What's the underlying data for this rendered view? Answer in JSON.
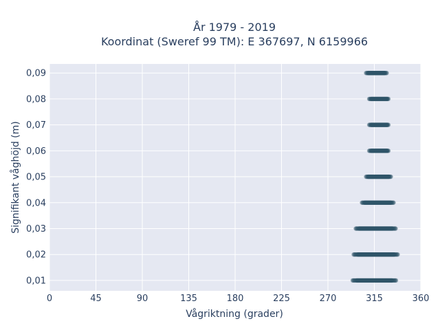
{
  "chart_data": {
    "type": "scatter",
    "title_line1": "År 1979 - 2019",
    "title_line2": "Koordinat (Sweref 99 TM): E 367697, N 6159966",
    "xlabel": "Vågriktning (grader)",
    "ylabel": "Signifikant våghöjd (m)",
    "xlim": [
      0,
      360
    ],
    "ylim": [
      0.006,
      0.0935
    ],
    "x_ticks": [
      0,
      45,
      90,
      135,
      180,
      225,
      270,
      315,
      360
    ],
    "x_tick_labels": [
      "0",
      "45",
      "90",
      "135",
      "180",
      "225",
      "270",
      "315",
      "360"
    ],
    "y_ticks": [
      0.01,
      0.02,
      0.03,
      0.04,
      0.05,
      0.06,
      0.07,
      0.08,
      0.09
    ],
    "y_tick_labels": [
      "0,01",
      "0,02",
      "0,03",
      "0,04",
      "0,05",
      "0,06",
      "0,07",
      "0,08",
      "0,09"
    ],
    "grid": true,
    "background_color": "#e5e8f2",
    "grid_color": "#ffffff",
    "marker_color": "#2f5569",
    "clusters": [
      {
        "y": 0.01,
        "x_min": 294,
        "x_max": 336
      },
      {
        "y": 0.02,
        "x_min": 295,
        "x_max": 338
      },
      {
        "y": 0.03,
        "x_min": 297,
        "x_max": 336
      },
      {
        "y": 0.04,
        "x_min": 303,
        "x_max": 334
      },
      {
        "y": 0.05,
        "x_min": 307,
        "x_max": 331
      },
      {
        "y": 0.06,
        "x_min": 310,
        "x_max": 329
      },
      {
        "y": 0.07,
        "x_min": 310,
        "x_max": 329
      },
      {
        "y": 0.08,
        "x_min": 310,
        "x_max": 329
      },
      {
        "y": 0.09,
        "x_min": 307,
        "x_max": 327
      }
    ]
  }
}
